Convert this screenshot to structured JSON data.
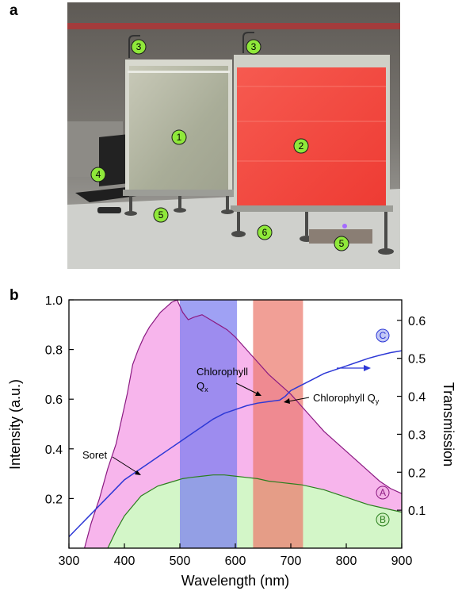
{
  "figure": {
    "panel_a_letter": "a",
    "panel_b_letter": "b"
  },
  "photo": {
    "markers": [
      "1",
      "2",
      "3",
      "3",
      "4",
      "5",
      "5",
      "6"
    ],
    "colors": {
      "marker_fill": "#8fe83a",
      "red_tank": "#f2453e",
      "clear_tank": "#b9bca8",
      "background": "#6b6a66",
      "bench": "#cfd0cc"
    }
  },
  "chart_data": {
    "type": "line",
    "xlabel": "Wavelength (nm)",
    "ylabel": "Intensity (a.u.)",
    "y2label": "Transmission",
    "xlim": [
      300,
      900
    ],
    "ylim": [
      0,
      1.0
    ],
    "y2lim": [
      0,
      0.654
    ],
    "xticks": [
      "300",
      "400",
      "500",
      "600",
      "700",
      "800",
      "900"
    ],
    "yticks": [
      "0.2",
      "0.4",
      "0.6",
      "0.8",
      "1.0"
    ],
    "y2ticks": [
      "0.1",
      "0.2",
      "0.3",
      "0.4",
      "0.5",
      "0.6"
    ],
    "bands": [
      {
        "label": "blue band",
        "x": [
          500,
          603
        ],
        "color": "#7a7df0"
      },
      {
        "label": "red band",
        "x": [
          632,
          722
        ],
        "color": "#ec7a6e"
      }
    ],
    "series": [
      {
        "name": "A",
        "axis": "left",
        "color": "#8b1a82",
        "fill": "#f7b5ec",
        "x": [
          328,
          340,
          355,
          370,
          385,
          395,
          405,
          415,
          425,
          435,
          445,
          455,
          465,
          475,
          485,
          495,
          505,
          515,
          525,
          540,
          555,
          570,
          585,
          600,
          620,
          640,
          660,
          680,
          700,
          720,
          740,
          760,
          780,
          800,
          820,
          840,
          860,
          880,
          900
        ],
        "values": [
          0.0,
          0.1,
          0.2,
          0.32,
          0.42,
          0.52,
          0.62,
          0.74,
          0.8,
          0.85,
          0.89,
          0.92,
          0.95,
          0.97,
          0.99,
          1.0,
          0.95,
          0.92,
          0.93,
          0.94,
          0.92,
          0.9,
          0.88,
          0.85,
          0.8,
          0.75,
          0.7,
          0.66,
          0.62,
          0.57,
          0.52,
          0.47,
          0.43,
          0.39,
          0.35,
          0.31,
          0.27,
          0.24,
          0.22
        ]
      },
      {
        "name": "B",
        "axis": "left",
        "color": "#2b7f1e",
        "fill": "#d3f6c8",
        "x": [
          370,
          385,
          400,
          415,
          430,
          445,
          460,
          475,
          490,
          505,
          520,
          540,
          560,
          580,
          600,
          620,
          640,
          660,
          680,
          700,
          720,
          740,
          760,
          780,
          800,
          820,
          840,
          860,
          880,
          900
        ],
        "values": [
          0.0,
          0.07,
          0.13,
          0.17,
          0.21,
          0.23,
          0.25,
          0.26,
          0.27,
          0.28,
          0.285,
          0.29,
          0.295,
          0.295,
          0.29,
          0.285,
          0.28,
          0.27,
          0.265,
          0.26,
          0.255,
          0.245,
          0.235,
          0.22,
          0.205,
          0.19,
          0.175,
          0.165,
          0.155,
          0.145
        ]
      },
      {
        "name": "C",
        "axis": "right",
        "color": "#2d38d6",
        "x": [
          300,
          320,
          340,
          360,
          380,
          400,
          420,
          440,
          460,
          480,
          500,
          520,
          540,
          560,
          580,
          600,
          620,
          640,
          660,
          670,
          680,
          690,
          700,
          720,
          740,
          760,
          780,
          800,
          820,
          840,
          860,
          880,
          900
        ],
        "values": [
          0.03,
          0.06,
          0.09,
          0.12,
          0.15,
          0.18,
          0.2,
          0.22,
          0.24,
          0.26,
          0.28,
          0.3,
          0.32,
          0.34,
          0.355,
          0.365,
          0.375,
          0.382,
          0.386,
          0.388,
          0.39,
          0.4,
          0.415,
          0.43,
          0.445,
          0.46,
          0.47,
          0.48,
          0.49,
          0.5,
          0.508,
          0.515,
          0.52
        ]
      }
    ],
    "annotations": {
      "soret": "Soret",
      "chl_qx_line1": "Chlorophyll",
      "chl_qx_line2": "Q",
      "chl_qx_sub": "x",
      "chl_qy": "Chlorophyll Q",
      "chl_qy_sub": "y",
      "circle_a": "A",
      "circle_b": "B",
      "circle_c": "C"
    }
  }
}
